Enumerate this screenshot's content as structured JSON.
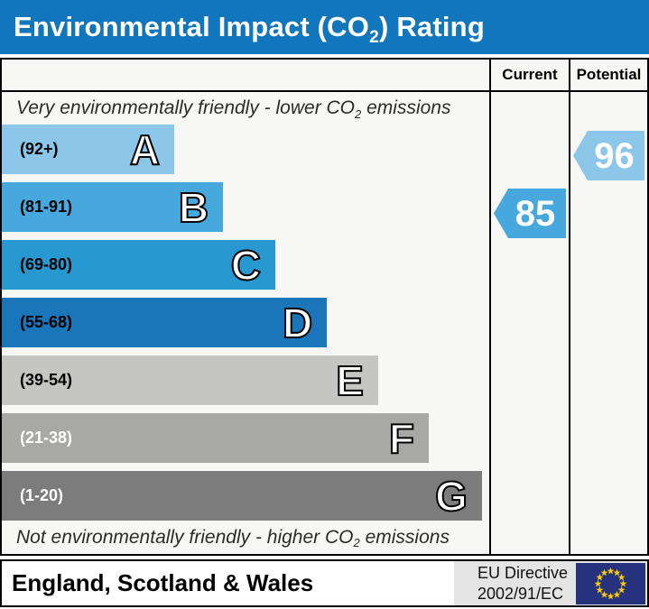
{
  "header": {
    "title_pre": "Environmental Impact (CO",
    "title_sub": "2",
    "title_post": ") Rating"
  },
  "columns": {
    "current": "Current",
    "potential": "Potential"
  },
  "scale_top": {
    "pre": "Very environmentally friendly - lower CO",
    "sub": "2",
    "post": " emissions"
  },
  "scale_bottom": {
    "pre": "Not environmentally friendly - higher CO",
    "sub": "2",
    "post": " emissions"
  },
  "footer": {
    "region": "England, Scotland & Wales",
    "directive_line1": "EU Directive",
    "directive_line2": "2002/91/EC"
  },
  "colors": {
    "title_bar": "#1176bc",
    "chart_bg": "#f7f7f5",
    "border": "#000000",
    "footer_panel": "#e4e4e4",
    "eu_flag_field": "#27327e",
    "eu_flag_stars": "#ffcc00"
  },
  "chart_data": {
    "type": "bar",
    "title": "Environmental Impact (CO2) Rating",
    "subtitle_top": "Very environmentally friendly - lower CO2 emissions",
    "subtitle_bottom": "Not environmentally friendly - higher CO2 emissions",
    "legend_position": "right-columns",
    "axis_range": [
      1,
      100
    ],
    "bands": [
      {
        "letter": "A",
        "range_label": "(92+)",
        "min": 92,
        "max": 100,
        "color": "#8cc6e8",
        "text_color": "#000000",
        "width_pct": 35.4
      },
      {
        "letter": "B",
        "range_label": "(81-91)",
        "min": 81,
        "max": 91,
        "color": "#46a8dc",
        "text_color": "#000000",
        "width_pct": 45.4
      },
      {
        "letter": "C",
        "range_label": "(69-80)",
        "min": 69,
        "max": 80,
        "color": "#2898d0",
        "text_color": "#000000",
        "width_pct": 56.1
      },
      {
        "letter": "D",
        "range_label": "(55-68)",
        "min": 55,
        "max": 68,
        "color": "#1b76b9",
        "text_color": "#000000",
        "width_pct": 66.7
      },
      {
        "letter": "E",
        "range_label": "(39-54)",
        "min": 39,
        "max": 54,
        "color": "#c5c5c3",
        "text_color": "#000000",
        "width_pct": 77.2
      },
      {
        "letter": "F",
        "range_label": "(21-38)",
        "min": 21,
        "max": 38,
        "color": "#a8a8a6",
        "text_color": "#ffffff",
        "width_pct": 87.6
      },
      {
        "letter": "G",
        "range_label": "(1-20)",
        "min": 1,
        "max": 20,
        "color": "#7c7c7c",
        "text_color": "#ffffff",
        "width_pct": 98.5
      }
    ],
    "current": {
      "value": 85,
      "band": "B",
      "band_index": 1,
      "color": "#46a8dc"
    },
    "potential": {
      "value": 96,
      "band": "A",
      "band_index": 0,
      "color": "#8cc6e8"
    }
  }
}
